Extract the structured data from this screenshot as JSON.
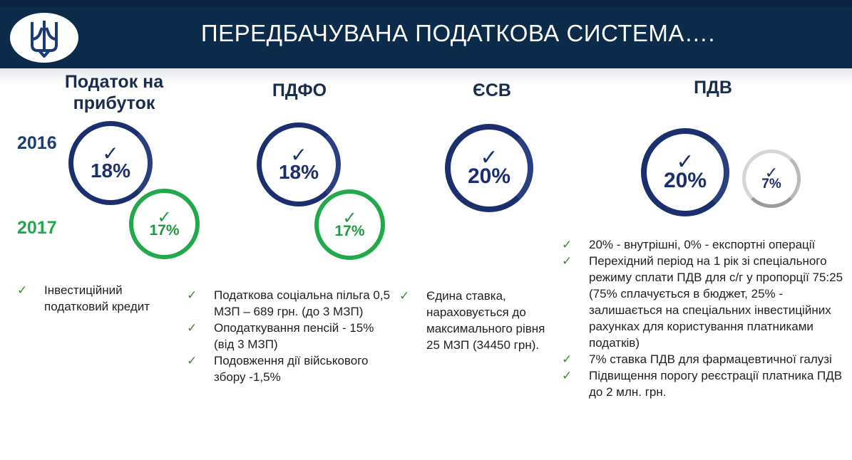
{
  "header": {
    "title": "ПЕРЕДБАЧУВАНА ПОДАТКОВА СИСТЕМА….",
    "logo_icon": "trident-icon",
    "background": "#0c2a4a"
  },
  "years": {
    "y2016": "2016",
    "y2017": "2017"
  },
  "colors": {
    "navy": "#1b2f6e",
    "green": "#22a94b",
    "tick_green": "#3d8b2c"
  },
  "columns": [
    {
      "title": "Податок на прибуток",
      "rate_2016": "18%",
      "rate_2017": "17%",
      "items": [
        "Інвестиційний податковий кредит"
      ]
    },
    {
      "title": "ПДФО",
      "rate_2016": "18%",
      "rate_2017": "17%",
      "items": [
        "Податкова соціальна пільга 0,5 МЗП – 689 грн. (до 3 МЗП)",
        "Оподаткування пенсій - 15% (від 3 МЗП)",
        "Подовження дії військового збору -1,5%"
      ]
    },
    {
      "title": "ЄСВ",
      "rate": "20%",
      "items": [
        "Єдина ставка, нараховується до максимального рівня 25 МЗП (34450 грн)."
      ]
    },
    {
      "title": "ПДВ",
      "rate": "20%",
      "rate_extra": "7%",
      "items": [
        "20% - внутрішні, 0% - експортні операції",
        "Перехідний період на 1 рік зі спеціального режиму сплати ПДВ для с/г у пропорції 75:25 (75% сплачується в бюджет, 25% - залишається на спеціальних інвестиційних рахунках для користування платниками податків)",
        "7% ставка ПДВ для фармацевтичної галузі",
        "Підвищення порогу реєстрації платника ПДВ до 2 млн. грн."
      ]
    }
  ]
}
